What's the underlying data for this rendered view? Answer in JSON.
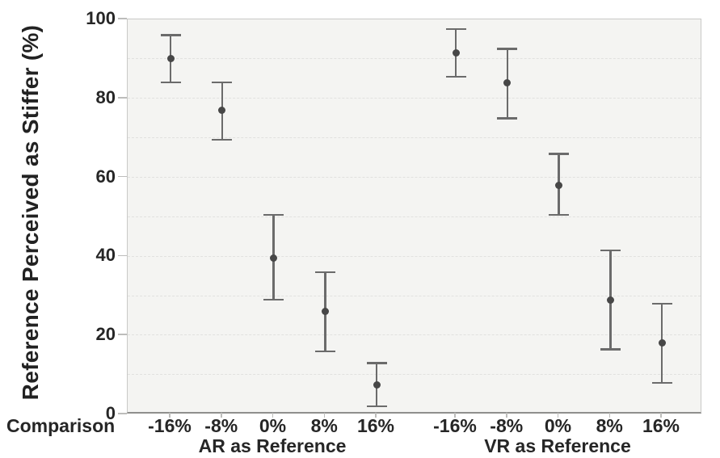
{
  "chart_data": {
    "type": "scatter",
    "subtype": "point-with-error-bars",
    "title": "",
    "ylabel": "Reference Perceived as Stiffer (%)",
    "xlabel_left": "Comparison",
    "ylim": [
      0,
      100
    ],
    "yticks": [
      0,
      20,
      40,
      60,
      80,
      100
    ],
    "gridlines": [
      10,
      20,
      30,
      40,
      50,
      60,
      70,
      80,
      90
    ],
    "grid_style": "dashed horizontal",
    "legend": "none",
    "categories": [
      "-16%",
      "-8%",
      "0%",
      "8%",
      "16%"
    ],
    "groups": [
      {
        "name": "AR as Reference",
        "means": [
          90,
          77,
          39.5,
          26,
          7.5
        ],
        "ci_low": [
          84,
          69.5,
          29,
          16,
          2
        ],
        "ci_high": [
          96,
          84,
          50.5,
          36,
          13
        ]
      },
      {
        "name": "VR as Reference",
        "means": [
          91.5,
          84,
          58,
          29,
          18
        ],
        "ci_low": [
          85.5,
          75,
          50.5,
          16.5,
          8
        ],
        "ci_high": [
          97.5,
          92.5,
          66,
          41.5,
          28
        ]
      }
    ],
    "colors": {
      "marker": "#474747",
      "error_bar": "#6b6b6b",
      "panel_background": "#f4f4f2",
      "gridline": "#e1e1df",
      "panel_border": "#c9c9c7",
      "axis_line": "#8f8f8d",
      "text": "#262626"
    }
  }
}
